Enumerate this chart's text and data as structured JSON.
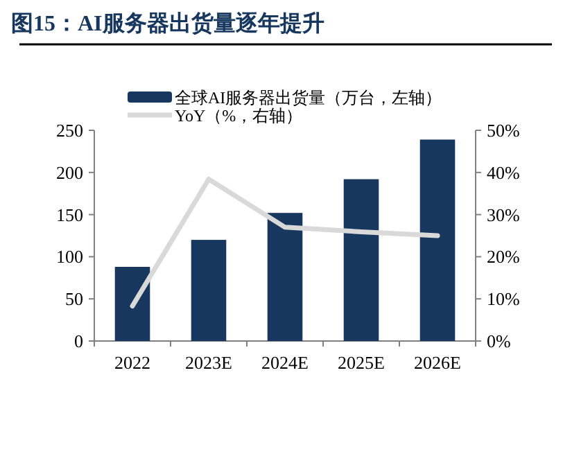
{
  "chart_data": {
    "type": "bar",
    "title": "图15：AI服务器出货量逐年提升",
    "categories": [
      "2022",
      "2023E",
      "2024E",
      "2025E",
      "2026E"
    ],
    "series": [
      {
        "name": "全球AI服务器出货量（万台，左轴）",
        "type": "bar",
        "color": "#17375e",
        "values": [
          88,
          120,
          152,
          192,
          239
        ]
      },
      {
        "name": "YoY（%，右轴）",
        "type": "line",
        "axis": "y2",
        "color": "#d9d9d9",
        "values": [
          8.3,
          38.4,
          27.0,
          25.9,
          25.0
        ]
      }
    ],
    "ylim": [
      0,
      250
    ],
    "yticks": [
      0,
      50,
      100,
      150,
      200,
      250
    ],
    "y2lim": [
      0,
      50
    ],
    "y2ticks": [
      {
        "value": 0,
        "label": "0%"
      },
      {
        "value": 10,
        "label": "10%"
      },
      {
        "value": 20,
        "label": "20%"
      },
      {
        "value": 30,
        "label": "30%"
      },
      {
        "value": 40,
        "label": "40%"
      },
      {
        "value": 50,
        "label": "50%"
      }
    ],
    "legend": "top left",
    "grid": false,
    "marker": "none",
    "line_style": "solid"
  }
}
